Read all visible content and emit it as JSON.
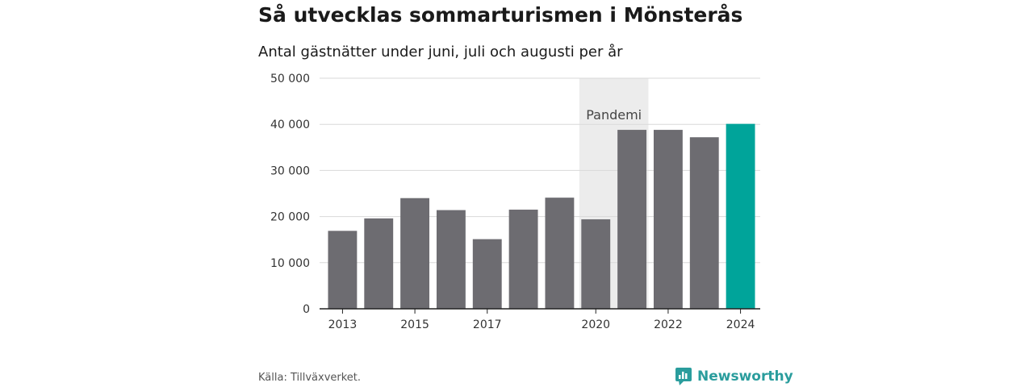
{
  "page": {
    "title": "Så utvecklas sommarturismen i Mönsterås",
    "subtitle": "Antal gästnätter under juni, juli och augusti per år",
    "source": "Källa: Tillväxverket.",
    "brand": "Newsworthy",
    "brand_icon": "bar-chart-speech-bubble-icon"
  },
  "colors": {
    "bar": "#6d6c71",
    "highlight": "#00a49a",
    "band": "#ececec",
    "grid": "#d9d9d9",
    "brand": "#2a9d9d"
  },
  "chart_data": {
    "type": "bar",
    "categories": [
      "2013",
      "2014",
      "2015",
      "2016",
      "2017",
      "2018",
      "2019",
      "2020",
      "2021",
      "2022",
      "2023",
      "2024"
    ],
    "values": [
      16900,
      19600,
      24000,
      21400,
      15100,
      21500,
      24100,
      19400,
      38800,
      38800,
      37200,
      40100
    ],
    "x_tick_labels": [
      "2013",
      "2015",
      "2017",
      "2020",
      "2022",
      "2024"
    ],
    "y_ticks": [
      0,
      10000,
      20000,
      30000,
      40000,
      50000
    ],
    "y_tick_labels": [
      "0",
      "10 000",
      "20 000",
      "30 000",
      "40 000",
      "50 000"
    ],
    "ylim": [
      0,
      50000
    ],
    "highlight_category": "2024",
    "annotation": {
      "label": "Pandemi",
      "from": "2020",
      "to": "2021"
    },
    "grid": true,
    "xlabel": "",
    "ylabel": ""
  }
}
